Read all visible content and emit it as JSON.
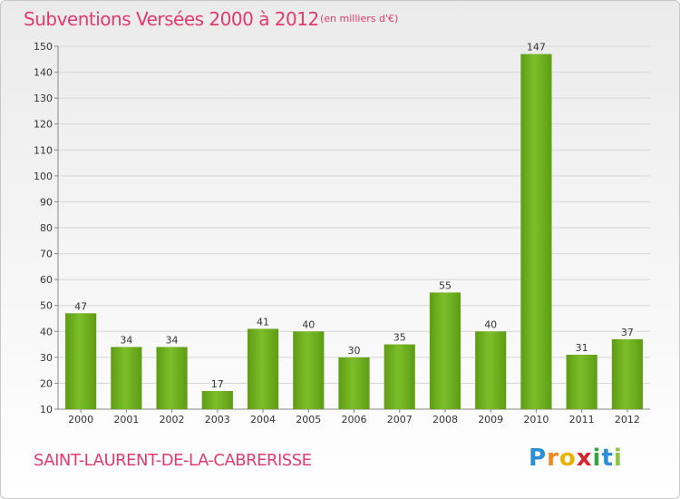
{
  "header": {
    "title": "Subventions Versées 2000 à 2012",
    "subtitle": "(en milliers d'€)"
  },
  "footer": {
    "commune": "SAINT-LAURENT-DE-LA-CABRERISSE",
    "logo_text": "Proxiti"
  },
  "colors": {
    "title": "#e23a6d",
    "bar": "#7cbf2a",
    "bar_dark": "#5e9c14",
    "grid": "#d6d6d6"
  },
  "chart_data": {
    "type": "bar",
    "title": "Subventions Versées 2000 à 2012",
    "subtitle": "(en milliers d'€)",
    "categories": [
      "2000",
      "2001",
      "2002",
      "2003",
      "2004",
      "2005",
      "2006",
      "2007",
      "2008",
      "2009",
      "2010",
      "2011",
      "2012"
    ],
    "values": [
      47,
      34,
      34,
      17,
      41,
      40,
      30,
      35,
      55,
      40,
      147,
      31,
      37
    ],
    "ylim": [
      10,
      150
    ],
    "yticks": [
      10,
      20,
      30,
      40,
      50,
      60,
      70,
      80,
      90,
      100,
      110,
      120,
      130,
      140,
      150
    ],
    "grid": true,
    "xlabel": "",
    "ylabel": ""
  }
}
